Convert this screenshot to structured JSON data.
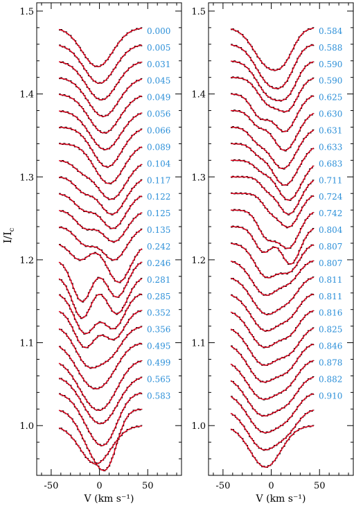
{
  "chart_data": [
    {
      "type": "line",
      "xlabel": "V (km s⁻¹)",
      "ylabel": "I/I",
      "ylabel_subscript": "c",
      "xlim": [
        -65,
        85
      ],
      "ylim": [
        0.94,
        1.51
      ],
      "xticks": [
        -50,
        0,
        50
      ],
      "yticks": [
        1.0,
        1.1,
        1.2,
        1.3,
        1.4,
        1.5
      ],
      "ytick_labels": [
        "1.0",
        "1.1",
        "1.2",
        "1.3",
        "1.4",
        "1.5"
      ],
      "xtick_labels": [
        "-50",
        "0",
        "50"
      ],
      "profile_x_range": [
        -42,
        44
      ],
      "profile_offsets": [
        1.48,
        1.46,
        1.44,
        1.42,
        1.4,
        1.38,
        1.36,
        1.34,
        1.32,
        1.3,
        1.28,
        1.26,
        1.24,
        1.22,
        1.2,
        1.18,
        1.16,
        1.14,
        1.12,
        1.1,
        1.08,
        1.06,
        1.04,
        1.02,
        1.0
      ],
      "series": [
        {
          "phase": "0.000",
          "components": [
            [
              -2,
              0.047,
              16
            ]
          ]
        },
        {
          "phase": "0.005",
          "components": [
            [
              0,
              0.047,
              16
            ]
          ]
        },
        {
          "phase": "0.031",
          "components": [
            [
              2,
              0.047,
              16
            ]
          ]
        },
        {
          "phase": "0.045",
          "components": [
            [
              4,
              0.047,
              16
            ]
          ]
        },
        {
          "phase": "0.049",
          "components": [
            [
              5,
              0.047,
              16
            ]
          ]
        },
        {
          "phase": "0.056",
          "components": [
            [
              6,
              0.047,
              16
            ]
          ]
        },
        {
          "phase": "0.066",
          "components": [
            [
              8,
              0.048,
              15
            ]
          ]
        },
        {
          "phase": "0.089",
          "components": [
            [
              10,
              0.048,
              15
            ]
          ]
        },
        {
          "phase": "0.104",
          "components": [
            [
              12,
              0.047,
              15
            ],
            [
              -18,
              0.01,
              9
            ]
          ]
        },
        {
          "phase": "0.117",
          "components": [
            [
              13,
              0.045,
              14
            ],
            [
              -17,
              0.015,
              9
            ]
          ]
        },
        {
          "phase": "0.122",
          "components": [
            [
              14,
              0.042,
              13
            ],
            [
              -16,
              0.018,
              10
            ]
          ]
        },
        {
          "phase": "0.125",
          "components": [
            [
              15,
              0.038,
              13
            ],
            [
              -15,
              0.02,
              10
            ]
          ]
        },
        {
          "phase": "0.135",
          "components": [
            [
              15,
              0.04,
              13
            ],
            [
              -15,
              0.02,
              10
            ]
          ]
        },
        {
          "phase": "0.242",
          "components": [
            [
              -20,
              0.02,
              10
            ],
            [
              20,
              0.047,
              12
            ]
          ]
        },
        {
          "phase": "0.246",
          "components": [
            [
              -18,
              0.05,
              10
            ],
            [
              18,
              0.045,
              11
            ]
          ]
        },
        {
          "phase": "0.281",
          "components": [
            [
              -18,
              0.05,
              10
            ],
            [
              18,
              0.045,
              11
            ]
          ]
        },
        {
          "phase": "0.285",
          "components": [
            [
              -15,
              0.048,
              11
            ],
            [
              15,
              0.042,
              11
            ]
          ]
        },
        {
          "phase": "0.352",
          "components": [
            [
              -15,
              0.045,
              11
            ],
            [
              15,
              0.035,
              11
            ]
          ]
        },
        {
          "phase": "0.356",
          "components": [
            [
              -12,
              0.045,
              13
            ],
            [
              12,
              0.03,
              12
            ]
          ]
        },
        {
          "phase": "0.495",
          "components": [
            [
              -10,
              0.045,
              15
            ],
            [
              10,
              0.025,
              13
            ]
          ]
        },
        {
          "phase": "0.499",
          "components": [
            [
              -8,
              0.045,
              16
            ],
            [
              10,
              0.028,
              14
            ]
          ]
        },
        {
          "phase": "0.565",
          "components": [
            [
              -4,
              0.045,
              16
            ],
            [
              12,
              0.02,
              14
            ]
          ]
        },
        {
          "phase": "0.583",
          "components": [
            [
              -4,
              0.045,
              15
            ],
            [
              10,
              0.028,
              12
            ]
          ]
        },
        {
          "phase": "",
          "components": [
            [
              -5,
              0.05,
              14
            ],
            [
              10,
              0.04,
              10
            ]
          ]
        },
        {
          "phase": "",
          "components": [
            [
              -4,
              0.046,
              16
            ]
          ]
        }
      ]
    },
    {
      "type": "line",
      "xlabel": "V (km s⁻¹)",
      "xlim": [
        -65,
        85
      ],
      "ylim": [
        0.94,
        1.51
      ],
      "xticks": [
        -50,
        0,
        50
      ],
      "yticks": [
        1.0,
        1.1,
        1.2,
        1.3,
        1.4,
        1.5
      ],
      "ytick_labels": [
        "1.0",
        "1.1",
        "1.2",
        "1.3",
        "1.4",
        "1.5"
      ],
      "xtick_labels": [
        "-50",
        "0",
        "50"
      ],
      "profile_x_range": [
        -42,
        44
      ],
      "profile_offsets": [
        1.48,
        1.46,
        1.44,
        1.42,
        1.4,
        1.38,
        1.36,
        1.34,
        1.32,
        1.3,
        1.28,
        1.26,
        1.24,
        1.22,
        1.2,
        1.18,
        1.16,
        1.14,
        1.12,
        1.1,
        1.08,
        1.06,
        1.04,
        1.02,
        1.0
      ],
      "series": [
        {
          "phase": "0.584",
          "components": [
            [
              -3,
              0.045,
              15
            ],
            [
              15,
              0.02,
              10
            ]
          ]
        },
        {
          "phase": "0.588",
          "components": [
            [
              -2,
              0.045,
              14
            ],
            [
              16,
              0.025,
              10
            ]
          ]
        },
        {
          "phase": "0.590",
          "components": [
            [
              -2,
              0.04,
              13
            ],
            [
              18,
              0.03,
              10
            ]
          ]
        },
        {
          "phase": "0.590",
          "components": [
            [
              -3,
              0.03,
              11
            ],
            [
              18,
              0.035,
              10
            ]
          ]
        },
        {
          "phase": "0.625",
          "components": [
            [
              -12,
              0.025,
              9
            ],
            [
              14,
              0.045,
              12
            ]
          ]
        },
        {
          "phase": "0.630",
          "components": [
            [
              -14,
              0.015,
              8
            ],
            [
              14,
              0.048,
              13
            ]
          ]
        },
        {
          "phase": "0.631",
          "components": [
            [
              12,
              0.05,
              14
            ],
            [
              -15,
              0.012,
              8
            ]
          ]
        },
        {
          "phase": "0.633",
          "components": [
            [
              14,
              0.05,
              14
            ],
            [
              -14,
              0.008,
              7
            ]
          ]
        },
        {
          "phase": "0.683",
          "components": [
            [
              18,
              0.048,
              13
            ],
            [
              -10,
              0.01,
              8
            ]
          ]
        },
        {
          "phase": "0.711",
          "components": [
            [
              18,
              0.045,
              12
            ],
            [
              -5,
              0.01,
              7
            ]
          ]
        },
        {
          "phase": "0.724",
          "components": [
            [
              18,
              0.04,
              11
            ],
            [
              -2,
              0.015,
              8
            ]
          ]
        },
        {
          "phase": "0.742",
          "components": [
            [
              18,
              0.045,
              11
            ],
            [
              -5,
              0.03,
              9
            ]
          ]
        },
        {
          "phase": "0.804",
          "components": [
            [
              20,
              0.045,
              10
            ],
            [
              -8,
              0.03,
              9
            ]
          ]
        },
        {
          "phase": "0.807",
          "components": [
            [
              -5,
              0.04,
              12
            ],
            [
              20,
              0.03,
              10
            ]
          ]
        },
        {
          "phase": "0.807",
          "components": [
            [
              -6,
              0.042,
              14
            ],
            [
              20,
              0.02,
              10
            ]
          ]
        },
        {
          "phase": "0.811",
          "components": [
            [
              -5,
              0.045,
              15
            ],
            [
              20,
              0.018,
              10
            ]
          ]
        },
        {
          "phase": "0.811",
          "components": [
            [
              -6,
              0.045,
              15
            ],
            [
              20,
              0.02,
              10
            ]
          ]
        },
        {
          "phase": "0.816",
          "components": [
            [
              -7,
              0.045,
              15
            ],
            [
              20,
              0.022,
              10
            ]
          ]
        },
        {
          "phase": "0.825",
          "components": [
            [
              -8,
              0.046,
              15
            ],
            [
              20,
              0.025,
              11
            ]
          ]
        },
        {
          "phase": "0.846",
          "components": [
            [
              -9,
              0.046,
              15
            ],
            [
              18,
              0.025,
              11
            ]
          ]
        },
        {
          "phase": "0.878",
          "components": [
            [
              -9,
              0.047,
              16
            ],
            [
              18,
              0.022,
              11
            ]
          ]
        },
        {
          "phase": "0.882",
          "components": [
            [
              -9,
              0.047,
              16
            ],
            [
              18,
              0.022,
              11
            ]
          ]
        },
        {
          "phase": "0.910",
          "components": [
            [
              -8,
              0.047,
              16
            ],
            [
              18,
              0.02,
              11
            ]
          ]
        },
        {
          "phase": "",
          "components": [
            [
              -8,
              0.048,
              16
            ],
            [
              18,
              0.018,
              11
            ]
          ]
        },
        {
          "phase": "",
          "components": [
            [
              -6,
              0.05,
              16
            ]
          ]
        }
      ]
    }
  ],
  "colors": {
    "observed": "#000000",
    "model": "#e8001c",
    "phase_label": "#2b8fd8",
    "axes": "#000000"
  }
}
